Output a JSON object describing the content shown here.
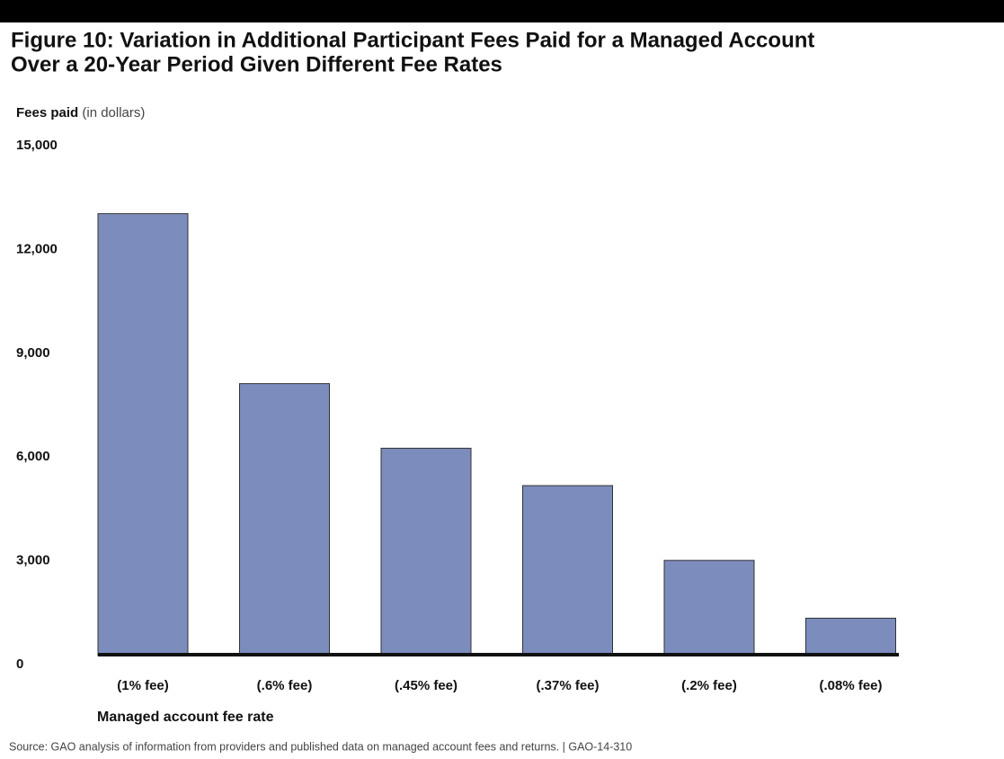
{
  "chart_data": {
    "type": "bar",
    "title_lines": [
      "Figure 10: Variation in Additional Participant Fees Paid for a Managed Account",
      "Over a 20-Year Period Given Different Fee Rates"
    ],
    "y_label": "Fees paid",
    "y_label_unit": "(in dollars)",
    "x_label": "Managed account fee rate",
    "source": "Source: GAO analysis of information from providers and published data on managed account fees and returns.  |  GAO-14-310",
    "categories": [
      "(1% fee)",
      "(.6% fee)",
      "(.45% fee)",
      "(.37% fee)",
      "(.2% fee)",
      "(.08% fee)"
    ],
    "values": [
      13000,
      8000,
      6100,
      5000,
      2800,
      1100
    ],
    "color": "#7b8cbd",
    "ylim": [
      0,
      15000
    ],
    "yticks": [
      {
        "value": 0,
        "label": "0"
      },
      {
        "value": 3000,
        "label": "3,000"
      },
      {
        "value": 6000,
        "label": "6,000"
      },
      {
        "value": 9000,
        "label": "9,000"
      },
      {
        "value": 12000,
        "label": "12,000"
      },
      {
        "value": 15000,
        "label": "15,000"
      }
    ],
    "grid": false
  }
}
